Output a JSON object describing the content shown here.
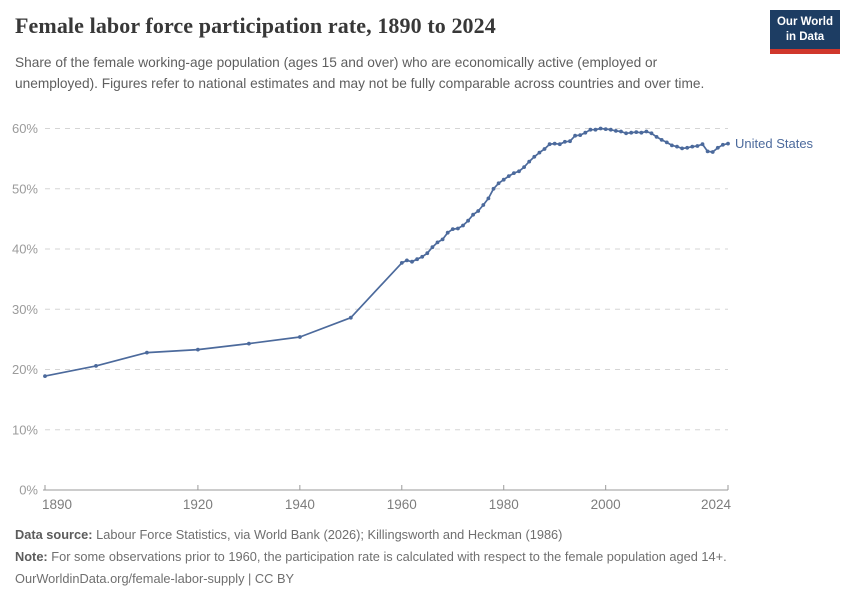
{
  "header": {
    "title": "Female labor force participation rate, 1890 to 2024",
    "logo": {
      "line1": "Our World",
      "line2": "in Data"
    }
  },
  "subtitle": "Share of the female working-age population (ages 15 and over) who are economically active (employed or unemployed). Figures refer to national estimates and may not be fully comparable across countries and over time.",
  "chart_data": {
    "type": "line",
    "title": "Female labor force participation rate, 1890 to 2024",
    "xlabel": "",
    "ylabel": "",
    "x_range": [
      1890,
      2024
    ],
    "ylim": [
      0,
      60
    ],
    "yticks": [
      0,
      10,
      20,
      30,
      40,
      50,
      60
    ],
    "ytick_suffix": "%",
    "xticks": [
      1890,
      1920,
      1940,
      1960,
      1980,
      2000,
      2024
    ],
    "grid": "horizontal-dashed",
    "legend_position": "end-of-line-label",
    "colors": {
      "line": "#4c6a9c",
      "gridline": "#d5d5d5",
      "axis": "#9a9a9a",
      "ytick_label": "#9b9b9b",
      "xtick_label": "#7d7d7d"
    },
    "series": [
      {
        "name": "United States",
        "color": "#4c6a9c",
        "x": [
          1890,
          1900,
          1910,
          1920,
          1930,
          1940,
          1950,
          1960,
          1961,
          1962,
          1963,
          1964,
          1965,
          1966,
          1967,
          1968,
          1969,
          1970,
          1971,
          1972,
          1973,
          1974,
          1975,
          1976,
          1977,
          1978,
          1979,
          1980,
          1981,
          1982,
          1983,
          1984,
          1985,
          1986,
          1987,
          1988,
          1989,
          1990,
          1991,
          1992,
          1993,
          1994,
          1995,
          1996,
          1997,
          1998,
          1999,
          2000,
          2001,
          2002,
          2003,
          2004,
          2005,
          2006,
          2007,
          2008,
          2009,
          2010,
          2011,
          2012,
          2013,
          2014,
          2015,
          2016,
          2017,
          2018,
          2019,
          2020,
          2021,
          2022,
          2023,
          2024
        ],
        "values": [
          18.9,
          20.6,
          22.8,
          23.3,
          24.3,
          25.4,
          28.6,
          37.7,
          38.1,
          37.9,
          38.3,
          38.7,
          39.3,
          40.3,
          41.1,
          41.6,
          42.7,
          43.3,
          43.4,
          43.9,
          44.7,
          45.7,
          46.3,
          47.3,
          48.4,
          50.0,
          50.9,
          51.5,
          52.1,
          52.6,
          52.9,
          53.6,
          54.5,
          55.3,
          56.0,
          56.6,
          57.4,
          57.5,
          57.4,
          57.8,
          57.9,
          58.8,
          58.9,
          59.3,
          59.8,
          59.8,
          60.0,
          59.9,
          59.8,
          59.6,
          59.5,
          59.2,
          59.3,
          59.4,
          59.3,
          59.5,
          59.2,
          58.6,
          58.1,
          57.7,
          57.2,
          57.0,
          56.7,
          56.8,
          57.0,
          57.1,
          57.4,
          56.2,
          56.1,
          56.8,
          57.3,
          57.5
        ]
      }
    ]
  },
  "footer": {
    "source_label": "Data source:",
    "source_text": " Labour Force Statistics, via World Bank (2026); Killingsworth and Heckman (1986)",
    "note_label": "Note:",
    "note_text": " For some observations prior to 1960, the participation rate is calculated with respect to the female population aged 14+.",
    "link": "OurWorldinData.org/female-labor-supply | CC BY"
  }
}
